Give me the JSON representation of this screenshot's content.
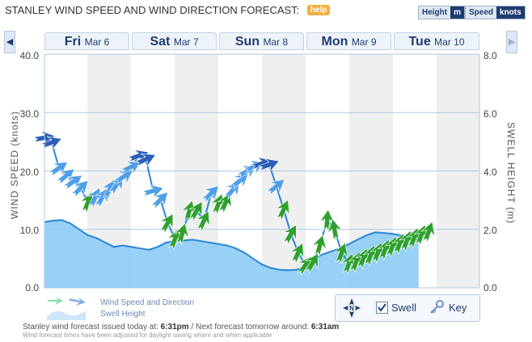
{
  "header": {
    "title": "STANLEY WIND SPEED AND WIND DIRECTION FORECAST:",
    "help_label": "help",
    "height_label": "Height",
    "height_unit": "m",
    "speed_label": "Speed",
    "speed_unit": "knots"
  },
  "nav": {
    "prev_icon": "chevron-left-icon",
    "next_icon": "chevron-right-icon"
  },
  "days": [
    {
      "day": "Fri",
      "date": "Mar 6"
    },
    {
      "day": "Sat",
      "date": "Mar 7"
    },
    {
      "day": "Sun",
      "date": "Mar 8"
    },
    {
      "day": "Mon",
      "date": "Mar 9"
    },
    {
      "day": "Tue",
      "date": "Mar 10"
    }
  ],
  "chart_data": {
    "type": "line",
    "y_left": {
      "label": "WIND SPEED (knots)",
      "range": [
        0,
        40
      ],
      "ticks": [
        "0.0",
        "10.0",
        "20.0",
        "30.0",
        "40.0"
      ]
    },
    "y_right": {
      "label": "SWELL HEIGHT (m)",
      "range": [
        0,
        8
      ],
      "ticks": [
        "0.0",
        "2.0",
        "4.0",
        "6.0",
        "8.0"
      ]
    },
    "grid": true,
    "legend_placement": "bottom-left",
    "colors": {
      "calm": "#2ea02e",
      "moderate": "#4f9fe8",
      "strong": "#2c5fb8",
      "line": "#2a85d8",
      "area": "#8ecbf5",
      "night_band": "#efefef",
      "grid": "#aec8e4"
    },
    "series": [
      {
        "name": "Wind Speed and Direction",
        "x": [
          0.0,
          0.25,
          0.5,
          0.75,
          1.0,
          1.25,
          1.5,
          1.75,
          2.0,
          2.25,
          2.5,
          2.75,
          3.0,
          3.25,
          3.5,
          3.75,
          4.0,
          4.25,
          4.5,
          4.75,
          5.0,
          5.25,
          5.5,
          5.75,
          6.0,
          6.25,
          6.5,
          6.75,
          7.0,
          7.25,
          7.5,
          7.75,
          8.0,
          8.25,
          8.5,
          8.75,
          9.0,
          9.25,
          9.5,
          9.75,
          10.0,
          10.25,
          10.5,
          10.75,
          11.0,
          11.25,
          11.5,
          11.75,
          12.0,
          12.25,
          12.5,
          12.75,
          13.0,
          13.25
        ],
        "values": [
          25.7,
          24.9,
          20.5,
          19.2,
          18.2,
          17.1,
          14.7,
          15.5,
          15.5,
          16.9,
          17.7,
          19.1,
          20.7,
          22.6,
          22.0,
          16.6,
          15.1,
          11.1,
          8.4,
          9.3,
          13.2,
          13.2,
          11.5,
          16.2,
          14.4,
          14.6,
          16.8,
          18.4,
          20.0,
          20.8,
          21.3,
          21.1,
          17.4,
          13.4,
          9.2,
          6.0,
          3.9,
          4.3,
          7.3,
          11.6,
          10.0,
          6.0,
          4.2,
          4.5,
          5.1,
          5.6,
          6.1,
          6.6,
          7.1,
          7.6,
          8.1,
          8.6,
          9.1,
          9.6
        ],
        "direction_deg": [
          260,
          250,
          235,
          230,
          235,
          225,
          200,
          205,
          210,
          205,
          215,
          235,
          245,
          250,
          245,
          255,
          225,
          210,
          200,
          195,
          195,
          210,
          205,
          225,
          200,
          205,
          220,
          230,
          240,
          245,
          250,
          250,
          230,
          205,
          210,
          205,
          215,
          210,
          195,
          185,
          170,
          200,
          200,
          200,
          200,
          200,
          200,
          200,
          200,
          200,
          200,
          200,
          200,
          200
        ]
      },
      {
        "name": "Swell Height",
        "x": [
          0,
          0.5,
          1,
          1.5,
          2,
          2.5,
          3,
          3.5,
          4,
          4.5,
          5,
          5.5,
          6,
          6.5,
          7,
          7.5,
          8,
          8.5,
          9,
          9.5,
          10,
          10.5,
          11,
          11.5,
          12,
          12.5,
          13,
          13.5,
          14,
          14.5,
          15,
          15.5,
          16,
          16.5,
          17,
          17.5,
          18,
          18.5,
          19,
          19.5,
          20,
          20.5,
          21,
          21.5,
          22,
          22.5,
          23,
          23.5,
          24,
          24.5,
          25
        ],
        "values": [
          2.25,
          2.3,
          2.32,
          2.2,
          2.0,
          1.8,
          1.7,
          1.55,
          1.4,
          1.45,
          1.4,
          1.35,
          1.3,
          1.4,
          1.55,
          1.6,
          1.62,
          1.65,
          1.6,
          1.55,
          1.5,
          1.45,
          1.35,
          1.2,
          1.0,
          0.8,
          0.68,
          0.62,
          0.6,
          0.62,
          0.72,
          1.0,
          1.15,
          1.25,
          1.35,
          1.5,
          1.65,
          1.8,
          1.9,
          1.88,
          1.85,
          1.8,
          1.75,
          1.65,
          1.5,
          1.35,
          1.2,
          1.05,
          0.9,
          0.8,
          0.75
        ]
      }
    ]
  },
  "legend": {
    "wind_label": "Wind Speed and Direction",
    "swell_label": "Swell Height"
  },
  "controls": {
    "compass_letter": "N",
    "swell_label": "Swell",
    "key_label": "Key"
  },
  "footer": {
    "issued_prefix": "Stanley wind forecast issued today at:",
    "issued_time": "6:31pm",
    "next_prefix": "/ Next forecast tomorrow around:",
    "next_time": "6:31am",
    "note": "Wind forecast times have been adjusted for daylight saving where and when applicable"
  }
}
